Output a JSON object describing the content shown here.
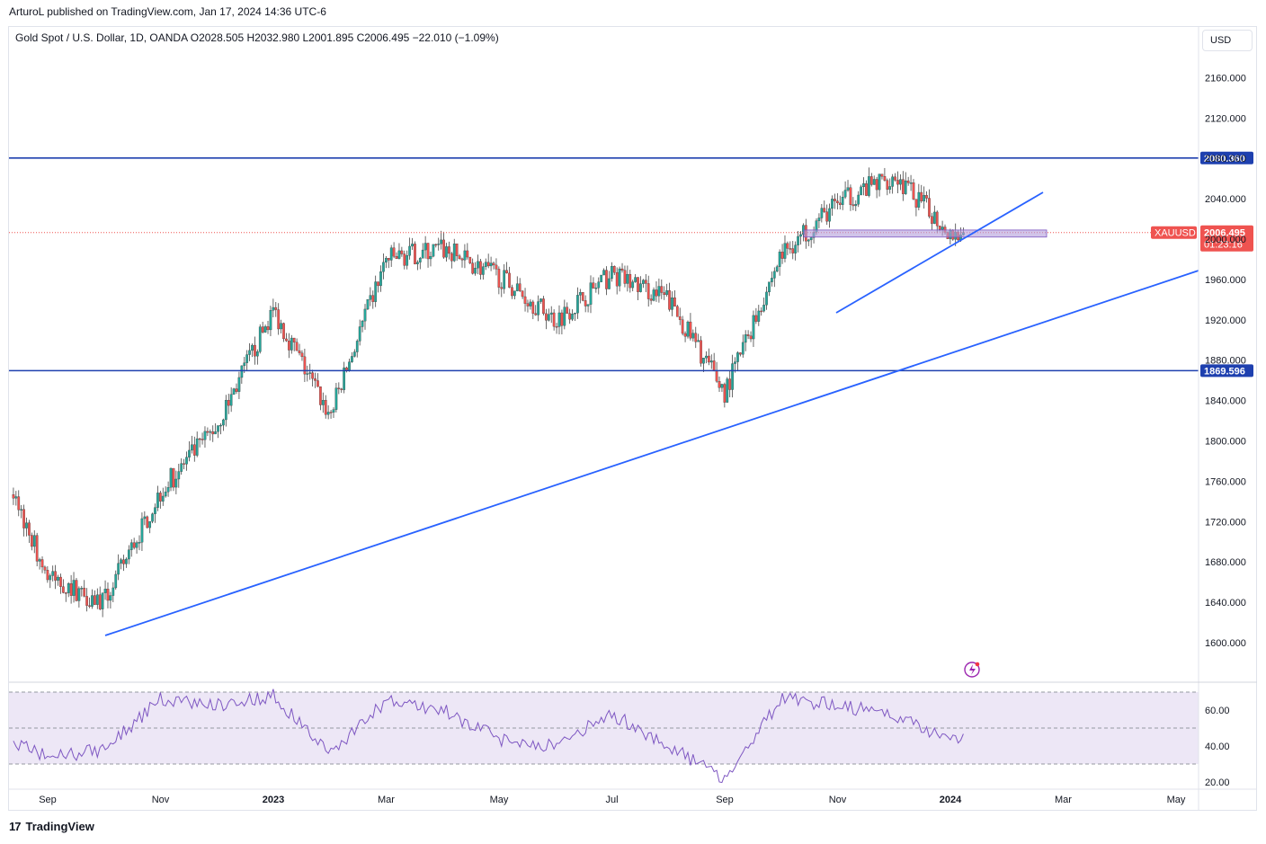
{
  "header": {
    "publish_line": "ArturoL published on TradingView.com, Jan 17, 2024 14:36 UTC-6"
  },
  "symbol_info": "Gold Spot / U.S. Dollar, 1D, OANDA  O2028.505  H2032.980  L2001.895  C2006.495  −22.010 (−1.09%)",
  "currency": "USD",
  "footer": {
    "brand": "TradingView",
    "icon": "tradingview-logo-icon"
  },
  "colors": {
    "up": "#26a69a",
    "down": "#ef5350",
    "hline": "#1e40af",
    "trend": "#2962ff",
    "rsi_line": "#7e57c2",
    "rsi_band": "#ede7f6",
    "price_badge": "#ef5350",
    "zone_fill": "#b39ddb"
  },
  "chart_data": [
    {
      "type": "candlestick",
      "instrument": "XAUUSD",
      "timeframe": "1D",
      "x_tick_labels": [
        "Sep",
        "Nov",
        "2023",
        "Mar",
        "May",
        "Jul",
        "Sep",
        "Nov",
        "2024",
        "Mar",
        "May"
      ],
      "y_tick_labels": [
        "1600.000",
        "1640.000",
        "1680.000",
        "1720.000",
        "1760.000",
        "1800.000",
        "1840.000",
        "1880.000",
        "1920.000",
        "1960.000",
        "2000.000",
        "2040.000",
        "2080.000",
        "2120.000",
        "2160.000"
      ],
      "ylim": [
        1575,
        2180
      ],
      "approx_close_path": [
        {
          "month": "2022-08",
          "close": 1800
        },
        {
          "month": "2022-09",
          "close": 1665
        },
        {
          "month": "2022-10",
          "close": 1640
        },
        {
          "month": "2022-11",
          "close": 1750
        },
        {
          "month": "2022-12",
          "close": 1815
        },
        {
          "month": "2023-01",
          "close": 1930
        },
        {
          "month": "2023-02",
          "close": 1825
        },
        {
          "month": "2023-03",
          "close": 1980
        },
        {
          "month": "2023-04",
          "close": 1990
        },
        {
          "month": "2023-05",
          "close": 1963
        },
        {
          "month": "2023-06",
          "close": 1920
        },
        {
          "month": "2023-07",
          "close": 1965
        },
        {
          "month": "2023-08",
          "close": 1940
        },
        {
          "month": "2023-09",
          "close": 1848
        },
        {
          "month": "2023-10",
          "close": 1985
        },
        {
          "month": "2023-11",
          "close": 2036
        },
        {
          "month": "2023-12",
          "close": 2063
        },
        {
          "month": "2024-01",
          "close": 2006.495
        }
      ],
      "horizontal_levels": [
        {
          "label": "2080.360",
          "value": 2080.36
        },
        {
          "label": "1869.596",
          "value": 1869.596
        }
      ],
      "last_price": {
        "symbol": "XAUUSD",
        "value": "2006.495",
        "countdown": "01:23:16",
        "numeric": 2006.495
      },
      "zone": {
        "from": 2002,
        "to": 2009
      },
      "annotations": "Two ascending trendlines and a support zone near 2006"
    },
    {
      "type": "line",
      "name": "RSI",
      "y_tick_labels": [
        "20.00",
        "40.00",
        "60.00"
      ],
      "ylim": [
        18,
        72
      ],
      "band": [
        30,
        70
      ],
      "midline": 50,
      "approx_values": [
        {
          "month": "2022-08",
          "value": 48
        },
        {
          "month": "2022-09",
          "value": 34
        },
        {
          "month": "2022-10",
          "value": 38
        },
        {
          "month": "2022-11",
          "value": 66
        },
        {
          "month": "2022-12",
          "value": 63
        },
        {
          "month": "2023-01",
          "value": 68
        },
        {
          "month": "2023-02",
          "value": 36
        },
        {
          "month": "2023-03",
          "value": 65
        },
        {
          "month": "2023-04",
          "value": 60
        },
        {
          "month": "2023-05",
          "value": 44
        },
        {
          "month": "2023-06",
          "value": 40
        },
        {
          "month": "2023-07",
          "value": 58
        },
        {
          "month": "2023-08",
          "value": 40
        },
        {
          "month": "2023-09",
          "value": 22
        },
        {
          "month": "2023-10",
          "value": 66
        },
        {
          "month": "2023-11",
          "value": 63
        },
        {
          "month": "2023-12",
          "value": 57
        },
        {
          "month": "2024-01",
          "value": 44
        }
      ]
    }
  ]
}
